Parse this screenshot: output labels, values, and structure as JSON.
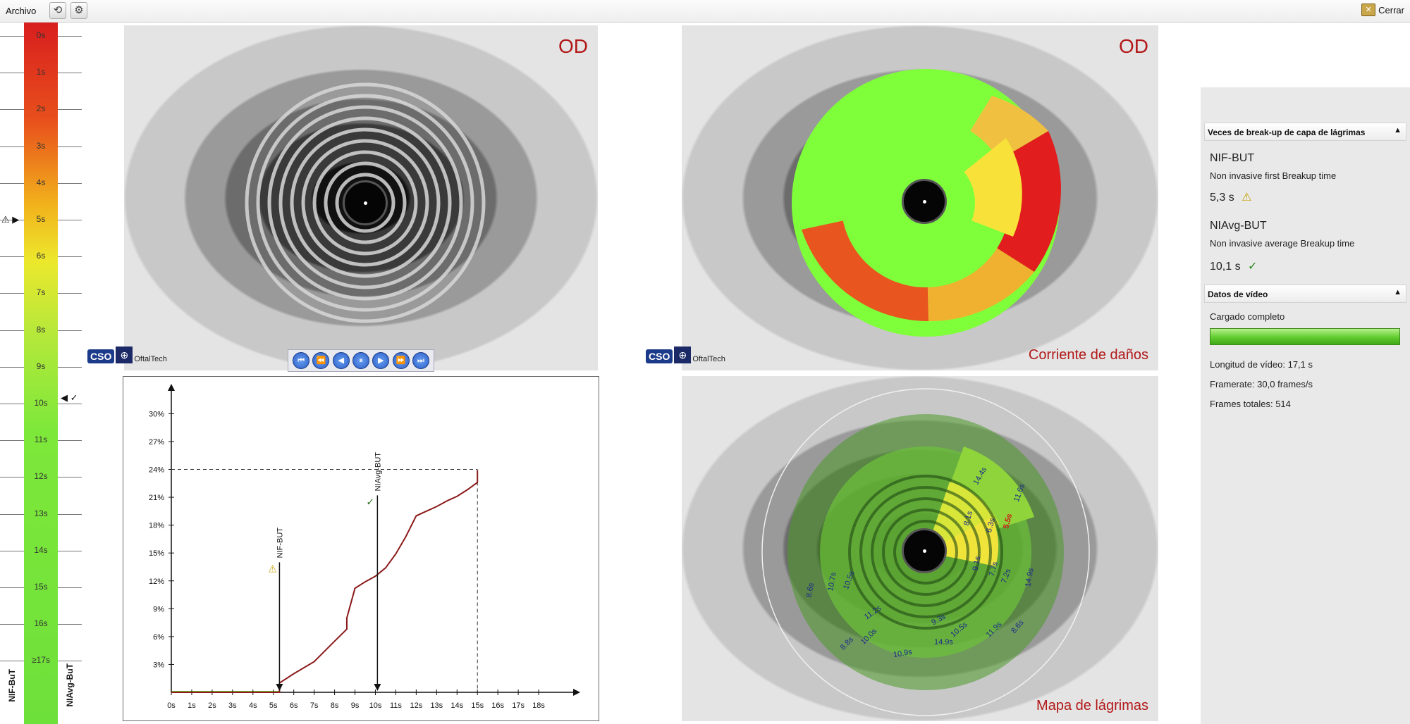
{
  "menubar": {
    "archivo": "Archivo",
    "close": "Cerrar"
  },
  "scale": {
    "labels": [
      "0s",
      "1s",
      "2s",
      "3s",
      "4s",
      "5s",
      "6s",
      "7s",
      "8s",
      "9s",
      "10s",
      "11s",
      "12s",
      "13s",
      "14s",
      "15s",
      "16s",
      "≥17s"
    ],
    "nifbut_label": "NIF-BuT",
    "niavgbut_label": "NIAvg-BuT",
    "warn_icon": "⚠ ▶",
    "check_icon": "◀ ✓"
  },
  "panels": {
    "top_left": {
      "eye": "OD"
    },
    "top_right": {
      "eye": "OD",
      "caption": "Corriente de daños"
    },
    "bottom_right": {
      "caption": "Mapa de lágrimas"
    },
    "logo": {
      "cso": "CSO",
      "brand": "OftalTech"
    }
  },
  "playback": {
    "buttons": [
      "⏮",
      "⏪",
      "◀",
      "⏸",
      "▶",
      "⏩",
      "⏭"
    ]
  },
  "tear_map": {
    "labels": [
      "14.4s",
      "11.6s",
      "5.5s",
      "8.1s",
      "6.3s",
      "9.1s",
      "7.7s",
      "7.2s",
      "14.9s",
      "8.6s",
      "10.7s",
      "10.5s",
      "11.2s",
      "10.0s",
      "8.8s",
      "9.3s",
      "10.5s",
      "11.9s",
      "8.6s",
      "14.9s",
      "10.9s"
    ],
    "highlight": "5.5s"
  },
  "chart_data": {
    "type": "line",
    "x_ticks": [
      "0s",
      "1s",
      "2s",
      "3s",
      "4s",
      "5s",
      "6s",
      "7s",
      "8s",
      "9s",
      "10s",
      "11s",
      "12s",
      "13s",
      "14s",
      "15s",
      "16s",
      "17s",
      "18s"
    ],
    "y_ticks": [
      "3%",
      "6%",
      "9%",
      "12%",
      "15%",
      "18%",
      "21%",
      "24%",
      "27%",
      "30%"
    ],
    "xlim": [
      0,
      19
    ],
    "ylim": [
      0,
      32
    ],
    "line_color": "#8b1a1a",
    "series": [
      {
        "x": [
          0,
          5.3,
          5.3,
          6.0,
          7.0,
          8.0,
          8.6,
          8.6,
          9.0,
          9.5,
          10.0,
          10.5,
          11.0,
          11.5,
          12.0,
          12.5,
          13.0,
          13.5,
          14.0,
          14.5,
          15.0,
          15.0
        ],
        "y": [
          0,
          0,
          1.0,
          2.0,
          3.3,
          5.5,
          6.8,
          8.0,
          11.2,
          11.9,
          12.5,
          13.4,
          14.9,
          16.8,
          19.0,
          19.5,
          20.0,
          20.6,
          21.1,
          21.8,
          22.6,
          23.9
        ]
      }
    ],
    "markers": [
      {
        "label": "NIF-BUT",
        "x": 5.3,
        "icon": "⚠"
      },
      {
        "label": "NIAvg-BUT",
        "x": 10.1,
        "icon": "✓"
      }
    ],
    "ref_line": {
      "x": 15.0,
      "y": 24
    }
  },
  "right_panel": {
    "section1": {
      "title": "Veces de break-up de capa de lágrimas",
      "nif_title": "NIF-BUT",
      "nif_desc": "Non invasive first Breakup time",
      "nif_value": "5,3 s",
      "niavg_title": "NIAvg-BUT",
      "niavg_desc": "Non invasive average Breakup time",
      "niavg_value": "10,1 s"
    },
    "section2": {
      "title": "Datos de vídeo",
      "status": "Cargado completo",
      "progress": 1.0,
      "length": "Longitud de vídeo: 17,1 s",
      "framerate": "Framerate: 30,0 frames/s",
      "frames": "Frames totales: 514"
    }
  }
}
